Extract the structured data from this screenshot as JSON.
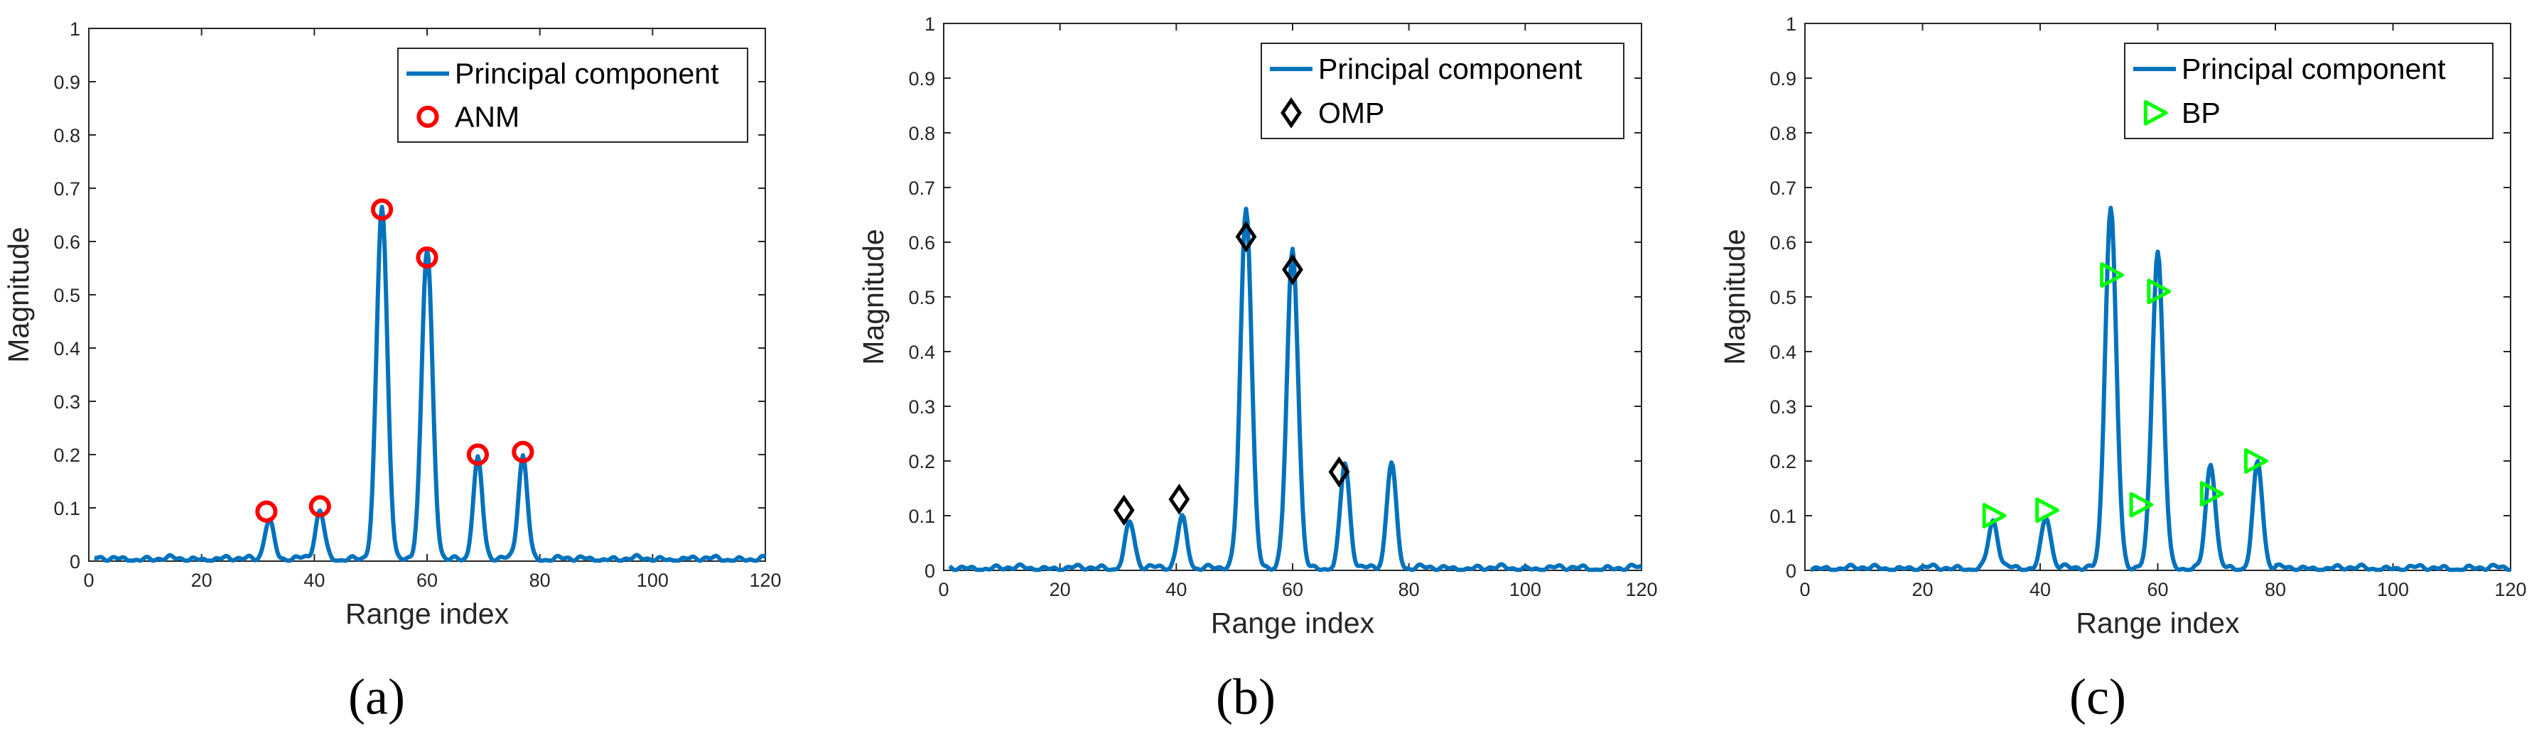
{
  "colors": {
    "line": "#0072BD",
    "anm_marker": "#FF0000",
    "omp_marker": "#000000",
    "bp_marker": "#00FF00",
    "axis": "#262626",
    "text": "#000000"
  },
  "chart_data": [
    {
      "type": "line",
      "caption": "(a)",
      "xlabel": "Range index",
      "ylabel": "Magnitude",
      "xlim": [
        0,
        120
      ],
      "ylim": [
        0,
        1
      ],
      "xticks": [
        "0",
        "20",
        "40",
        "60",
        "80",
        "100",
        "120"
      ],
      "yticks": [
        "0",
        "0.1",
        "0.2",
        "0.3",
        "0.4",
        "0.5",
        "0.6",
        "0.7",
        "0.8",
        "0.9",
        "1"
      ],
      "legend": {
        "position": "top-right",
        "entries": [
          "Principal component",
          "ANM"
        ]
      },
      "series": [
        {
          "name": "Principal component",
          "kind": "line",
          "peaks": [
            [
              32,
              0.075
            ],
            [
              41,
              0.09
            ],
            [
              52,
              0.66
            ],
            [
              60,
              0.58
            ],
            [
              69,
              0.19
            ],
            [
              77,
              0.195
            ]
          ]
        },
        {
          "name": "ANM",
          "kind": "marker",
          "marker": "circle",
          "x": [
            31.5,
            41,
            52,
            60,
            69,
            77
          ],
          "y": [
            0.093,
            0.103,
            0.66,
            0.57,
            0.2,
            0.205
          ]
        }
      ]
    },
    {
      "type": "line",
      "caption": "(b)",
      "xlabel": "Range index",
      "ylabel": "Magnitude",
      "xlim": [
        0,
        120
      ],
      "ylim": [
        0,
        1
      ],
      "xticks": [
        "0",
        "20",
        "40",
        "60",
        "80",
        "100",
        "120"
      ],
      "yticks": [
        "0",
        "0.1",
        "0.2",
        "0.3",
        "0.4",
        "0.5",
        "0.6",
        "0.7",
        "0.8",
        "0.9",
        "1"
      ],
      "legend": {
        "position": "top-right",
        "entries": [
          "Principal component",
          "OMP"
        ]
      },
      "series": [
        {
          "name": "Principal component",
          "kind": "line",
          "peaks": [
            [
              32,
              0.085
            ],
            [
              41,
              0.095
            ],
            [
              52,
              0.66
            ],
            [
              60,
              0.58
            ],
            [
              69,
              0.19
            ],
            [
              77,
              0.195
            ]
          ]
        },
        {
          "name": "OMP",
          "kind": "marker",
          "marker": "diamond",
          "x": [
            31,
            40.5,
            52,
            60,
            68
          ],
          "y": [
            0.11,
            0.13,
            0.61,
            0.55,
            0.18
          ]
        }
      ]
    },
    {
      "type": "line",
      "caption": "(c)",
      "xlabel": "Range index",
      "ylabel": "Magnitude",
      "xlim": [
        0,
        120
      ],
      "ylim": [
        0,
        1
      ],
      "xticks": [
        "0",
        "20",
        "40",
        "60",
        "80",
        "100",
        "120"
      ],
      "yticks": [
        "0",
        "0.1",
        "0.2",
        "0.3",
        "0.4",
        "0.5",
        "0.6",
        "0.7",
        "0.8",
        "0.9",
        "1"
      ],
      "legend": {
        "position": "top-right",
        "entries": [
          "Principal component",
          "BP"
        ]
      },
      "series": [
        {
          "name": "Principal component",
          "kind": "line",
          "peaks": [
            [
              32,
              0.085
            ],
            [
              41,
              0.095
            ],
            [
              52,
              0.66
            ],
            [
              60,
              0.58
            ],
            [
              69,
              0.19
            ],
            [
              77,
              0.195
            ]
          ]
        },
        {
          "name": "BP",
          "kind": "marker",
          "marker": "triangle-right",
          "x": [
            32,
            41,
            52,
            57,
            60,
            69,
            76.5
          ],
          "y": [
            0.1,
            0.11,
            0.54,
            0.12,
            0.51,
            0.14,
            0.2
          ]
        }
      ]
    }
  ]
}
